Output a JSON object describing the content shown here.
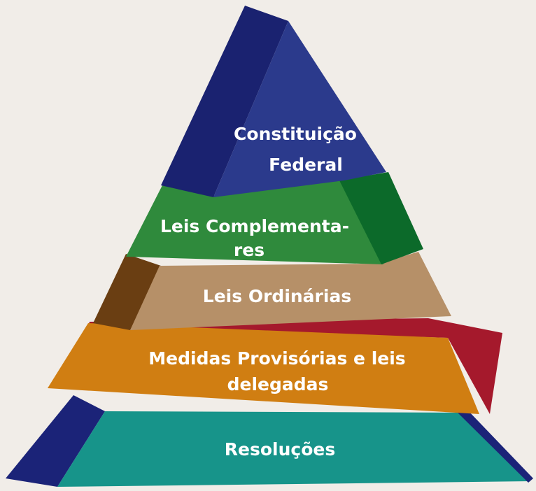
{
  "levels": [
    {
      "id": "constituicao",
      "lines": [
        "Constituição",
        "Federal"
      ]
    },
    {
      "id": "complementares",
      "lines": [
        "Leis Complementa-",
        "res"
      ]
    },
    {
      "id": "ordinarias",
      "lines": [
        "Leis Ordinárias"
      ]
    },
    {
      "id": "medidas",
      "lines": [
        "Medidas Provisórias e leis",
        "delegadas"
      ]
    },
    {
      "id": "resolucoes",
      "lines": [
        "Resoluções"
      ]
    }
  ],
  "colors": {
    "background": "#f1ede8",
    "blue_front": "#2b3a8c",
    "blue_side": "#1a2270",
    "green_front": "#2f8a3c",
    "green_side": "#0c6a2a",
    "tan_front": "#b69068",
    "brown_side": "#6a3e12",
    "orange_front": "#d07e12",
    "red_side": "#a5192c",
    "teal_front": "#17948a",
    "navy_side": "#1b2378"
  }
}
